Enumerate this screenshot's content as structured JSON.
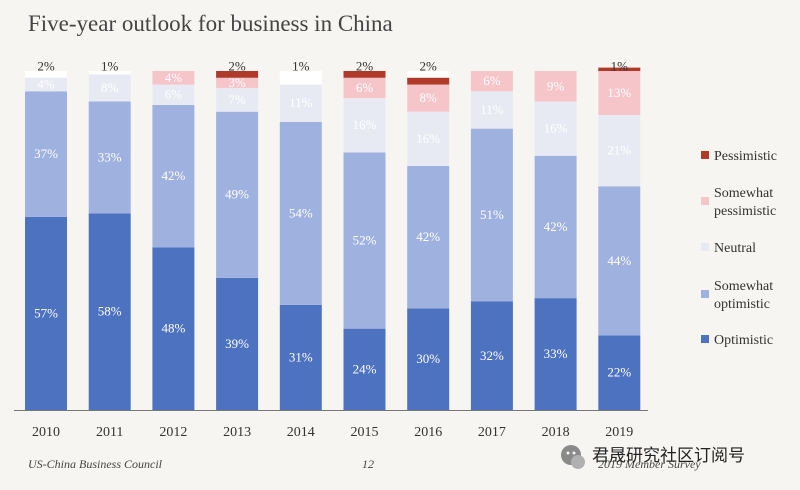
{
  "chart_data": {
    "type": "bar",
    "stacked": true,
    "title": "Five-year outlook for business in China",
    "categories": [
      "2010",
      "2011",
      "2012",
      "2013",
      "2014",
      "2015",
      "2016",
      "2017",
      "2018",
      "2019"
    ],
    "series": [
      {
        "name": "Optimistic",
        "color": "#4d72c0",
        "values": [
          57,
          58,
          48,
          39,
          31,
          24,
          30,
          32,
          33,
          22
        ]
      },
      {
        "name": "Somewhat optimistic",
        "color": "#9fb1de",
        "values": [
          37,
          33,
          42,
          49,
          54,
          52,
          42,
          51,
          42,
          44
        ]
      },
      {
        "name": "Neutral",
        "color": "#e8eaf3",
        "values": [
          4,
          8,
          6,
          7,
          11,
          16,
          16,
          11,
          16,
          21
        ]
      },
      {
        "name": "Somewhat pessimistic",
        "color": "#f6c5ca",
        "values": [
          0,
          0,
          4,
          3,
          0,
          6,
          8,
          6,
          9,
          13
        ]
      },
      {
        "name": "Pessimistic",
        "color": "#b03a2a",
        "values": [
          0,
          0,
          0,
          2,
          0,
          2,
          2,
          0,
          0,
          1
        ]
      }
    ],
    "top_labels": [
      "2%",
      "1%",
      "",
      "2%",
      "1%",
      "2%",
      "2%",
      "",
      "",
      "1%"
    ],
    "legend_position": "right",
    "legend_order": [
      "Pessimistic",
      "Somewhat pessimistic",
      "Neutral",
      "Somewhat optimistic",
      "Optimistic"
    ]
  },
  "footer": {
    "source": "US-China Business Council",
    "page": "12",
    "survey": "2019 Member Survey"
  },
  "watermark": {
    "text": "君晟研究社区订阅号"
  }
}
